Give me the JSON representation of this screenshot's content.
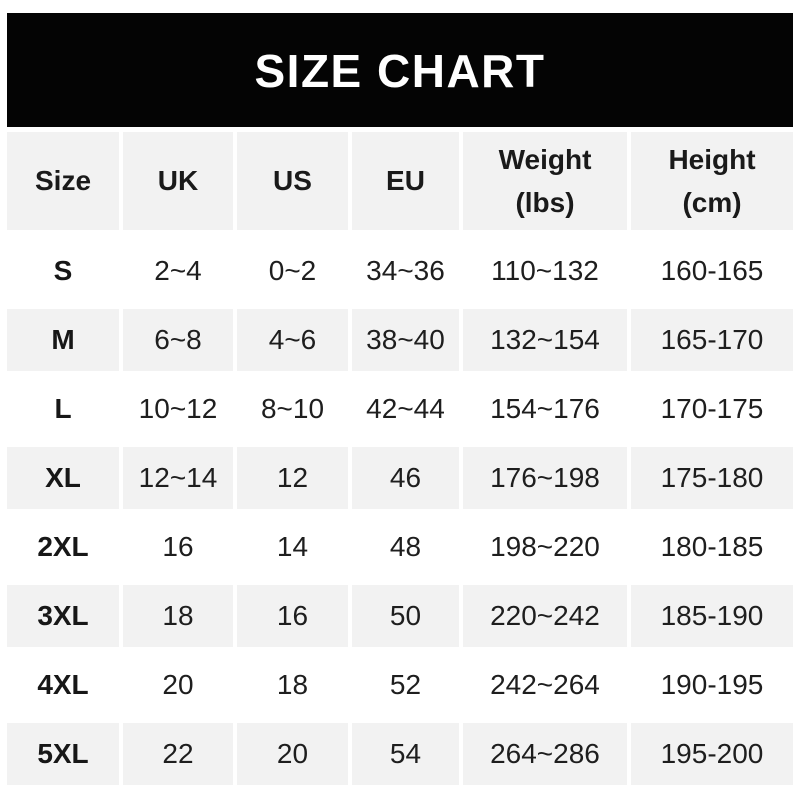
{
  "title": "SIZE CHART",
  "colors": {
    "banner_bg": "#040404",
    "banner_text": "#ffffff",
    "row_alt_bg": "#f2f2f2",
    "row_bg": "#ffffff",
    "header_bg": "#f2f2f2",
    "text": "#1e1e1e"
  },
  "chart_data": {
    "type": "table",
    "title": "SIZE CHART",
    "columns": [
      {
        "key": "size",
        "label": "Size"
      },
      {
        "key": "uk",
        "label": "UK"
      },
      {
        "key": "us",
        "label": "US"
      },
      {
        "key": "eu",
        "label": "EU"
      },
      {
        "key": "weight",
        "label": "Weight (lbs)"
      },
      {
        "key": "height",
        "label": "Height (cm)"
      }
    ],
    "rows": [
      {
        "size": "S",
        "uk": "2~4",
        "us": "0~2",
        "eu": "34~36",
        "weight": "110~132",
        "height": "160-165"
      },
      {
        "size": "M",
        "uk": "6~8",
        "us": "4~6",
        "eu": "38~40",
        "weight": "132~154",
        "height": "165-170"
      },
      {
        "size": "L",
        "uk": "10~12",
        "us": "8~10",
        "eu": "42~44",
        "weight": "154~176",
        "height": "170-175"
      },
      {
        "size": "XL",
        "uk": "12~14",
        "us": "12",
        "eu": "46",
        "weight": "176~198",
        "height": "175-180"
      },
      {
        "size": "2XL",
        "uk": "16",
        "us": "14",
        "eu": "48",
        "weight": "198~220",
        "height": "180-185"
      },
      {
        "size": "3XL",
        "uk": "18",
        "us": "16",
        "eu": "50",
        "weight": "220~242",
        "height": "185-190"
      },
      {
        "size": "4XL",
        "uk": "20",
        "us": "18",
        "eu": "52",
        "weight": "242~264",
        "height": "190-195"
      },
      {
        "size": "5XL",
        "uk": "22",
        "us": "20",
        "eu": "54",
        "weight": "264~286",
        "height": "195-200"
      }
    ],
    "layout": {
      "striping": "alternate rows light gray starting at row M",
      "grid": "columns separated by thin white gaps, no borders"
    }
  }
}
